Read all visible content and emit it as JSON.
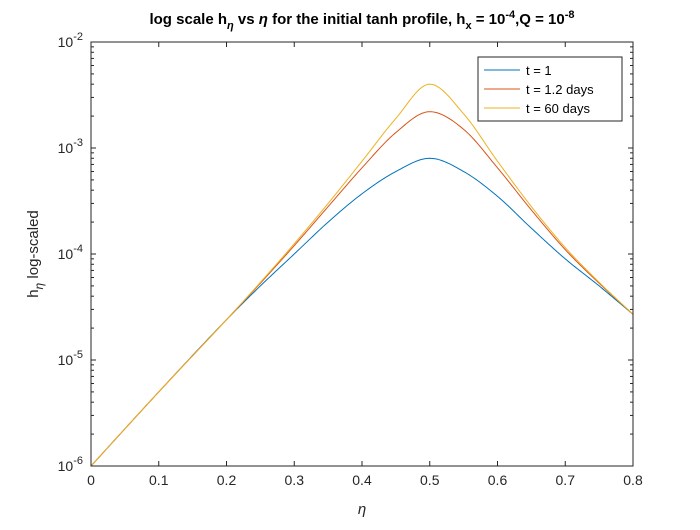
{
  "chart_data": {
    "type": "line",
    "title": {
      "pre": "log scale h",
      "sub1": "η",
      "mid": " vs ",
      "eta": "η",
      "post1": " for the initial tanh profile, h",
      "sub2": "x",
      "post2": " = 10",
      "sup1": "-4",
      "post3": ",Q = 10",
      "sup2": "-8"
    },
    "xlabel": "η",
    "ylabel": {
      "base": "h",
      "sub": "η",
      "rest": " log-scaled"
    },
    "xlim": [
      0,
      0.8
    ],
    "ylim": [
      1e-06,
      0.01
    ],
    "yscale": "log",
    "grid": false,
    "legend_position": "top-right",
    "xticks": [
      {
        "value": 0,
        "label": "0"
      },
      {
        "value": 0.1,
        "label": "0.1"
      },
      {
        "value": 0.2,
        "label": "0.2"
      },
      {
        "value": 0.3,
        "label": "0.3"
      },
      {
        "value": 0.4,
        "label": "0.4"
      },
      {
        "value": 0.5,
        "label": "0.5"
      },
      {
        "value": 0.6,
        "label": "0.6"
      },
      {
        "value": 0.7,
        "label": "0.7"
      },
      {
        "value": 0.8,
        "label": "0.8"
      }
    ],
    "yticks": [
      {
        "value": 1e-06,
        "base": "10",
        "exp": "-6"
      },
      {
        "value": 1e-05,
        "base": "10",
        "exp": "-5"
      },
      {
        "value": 0.0001,
        "base": "10",
        "exp": "-4"
      },
      {
        "value": 0.001,
        "base": "10",
        "exp": "-3"
      },
      {
        "value": 0.01,
        "base": "10",
        "exp": "-2"
      }
    ],
    "series": [
      {
        "name": "t = 1",
        "color": "#0072BD",
        "x": [
          0,
          0.1,
          0.2,
          0.25,
          0.3,
          0.35,
          0.4,
          0.45,
          0.5,
          0.55,
          0.6,
          0.65,
          0.7,
          0.75,
          0.8
        ],
        "y": [
          1e-06,
          5e-06,
          2.4e-05,
          5e-05,
          0.0001,
          0.0002,
          0.00037,
          0.0006,
          0.0008,
          0.0006,
          0.00035,
          0.000175,
          9e-05,
          5e-05,
          2.7e-05
        ]
      },
      {
        "name": "t = 1.2 days",
        "color": "#D95319",
        "x": [
          0,
          0.1,
          0.2,
          0.25,
          0.3,
          0.35,
          0.4,
          0.45,
          0.5,
          0.55,
          0.6,
          0.65,
          0.7,
          0.75,
          0.8
        ],
        "y": [
          1e-06,
          5e-06,
          2.4e-05,
          5.3e-05,
          0.00012,
          0.00028,
          0.00065,
          0.0014,
          0.0022,
          0.0015,
          0.00065,
          0.00026,
          0.00011,
          5.3e-05,
          2.7e-05
        ]
      },
      {
        "name": "t = 60 days",
        "color": "#EDB120",
        "x": [
          0,
          0.1,
          0.2,
          0.25,
          0.3,
          0.35,
          0.4,
          0.45,
          0.5,
          0.55,
          0.6,
          0.65,
          0.7,
          0.75,
          0.8
        ],
        "y": [
          1e-06,
          5e-06,
          2.4e-05,
          5.4e-05,
          0.000125,
          0.0003,
          0.00075,
          0.0019,
          0.004,
          0.0021,
          0.00075,
          0.00028,
          0.000115,
          5.4e-05,
          2.7e-05
        ]
      }
    ]
  }
}
